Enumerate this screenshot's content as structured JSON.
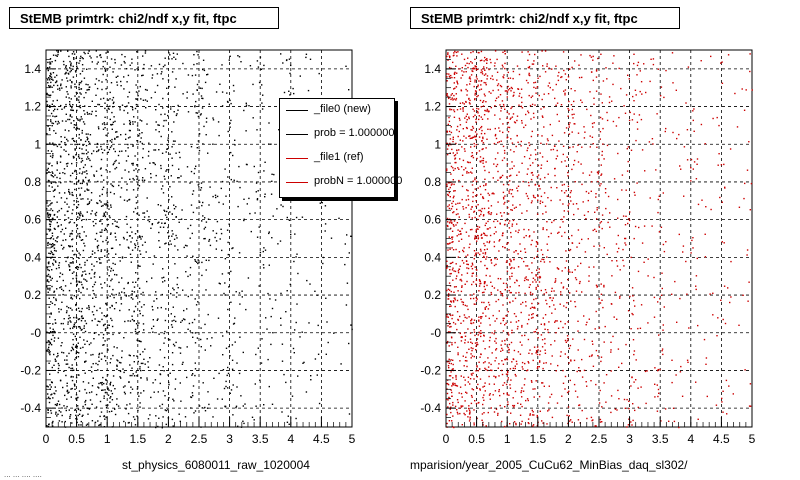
{
  "panels": [
    {
      "title": "StEMB primtrk: chi2/ndf x,y fit, ftpc",
      "xcaption": "st_physics_6080011_raw_1020004"
    },
    {
      "title": "StEMB primtrk: chi2/ndf x,y fit, ftpc",
      "xcaption": "mparision/year_2005_CuCu62_MinBias_daq_sl302/"
    }
  ],
  "legend": {
    "items": [
      {
        "label": "_file0 (new)",
        "color": "#000000"
      },
      {
        "label": "prob = 1.000000",
        "color": "#000000"
      },
      {
        "label": "_file1 (ref)",
        "color": "#cc0000"
      },
      {
        "label": "probN = 1.000000",
        "color": "#cc0000"
      }
    ]
  },
  "footer": "... ... .... ....",
  "chart_data": [
    {
      "type": "scatter",
      "title": "StEMB primtrk: chi2/ndf x,y fit, ftpc",
      "xlabel": "st_physics_6080011_raw_1020004",
      "ylabel": "",
      "xlim": [
        0,
        5
      ],
      "ylim": [
        -0.5,
        1.5
      ],
      "xticks": [
        "0",
        "0.5",
        "1",
        "1.5",
        "2",
        "2.5",
        "3",
        "3.5",
        "4",
        "4.5",
        "5"
      ],
      "yticks": [
        "-0.4",
        "-0.2",
        "-0",
        "0.2",
        "0.4",
        "0.6",
        "0.8",
        "1",
        "1.2",
        "1.4"
      ],
      "grid": true,
      "series": [
        {
          "name": "_file0 (new)",
          "color": "#000000",
          "density": "dense near x=0-1.5, decreasing toward x=5, roughly uniform in y"
        }
      ]
    },
    {
      "type": "scatter",
      "title": "StEMB primtrk: chi2/ndf x,y fit, ftpc",
      "xlabel": "mparision/year_2005_CuCu62_MinBias_daq_sl302/",
      "ylabel": "",
      "xlim": [
        0,
        5
      ],
      "ylim": [
        -0.5,
        1.5
      ],
      "xticks": [
        "0",
        "0.5",
        "1",
        "1.5",
        "2",
        "2.5",
        "3",
        "3.5",
        "4",
        "4.5",
        "5"
      ],
      "yticks": [
        "-0.4",
        "-0.2",
        "-0",
        "0.2",
        "0.4",
        "0.6",
        "0.8",
        "1",
        "1.2",
        "1.4"
      ],
      "grid": true,
      "series": [
        {
          "name": "_file1 (ref)",
          "color": "#cc0000",
          "density": "dense near x=0-1.5, decreasing toward x=5, roughly uniform in y"
        }
      ]
    }
  ]
}
